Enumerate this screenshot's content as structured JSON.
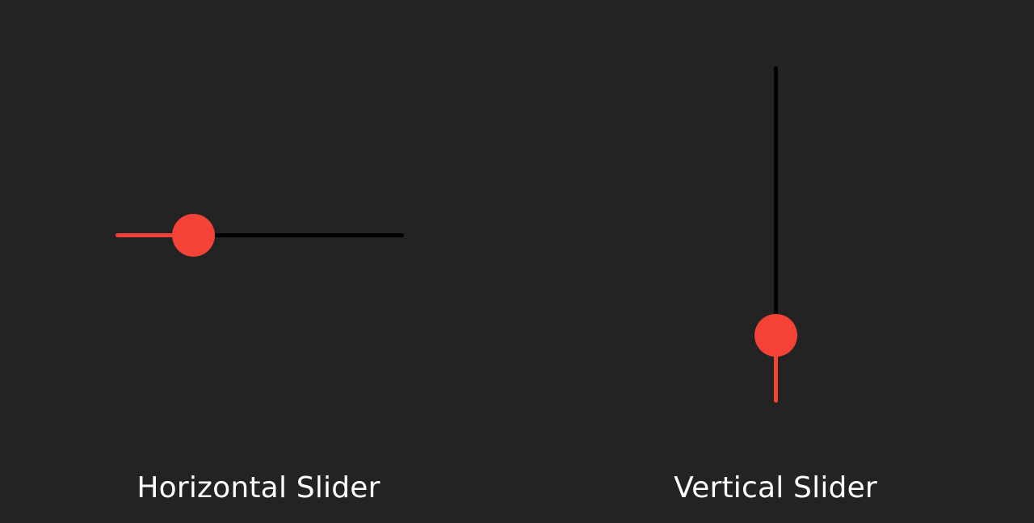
{
  "colors": {
    "background": "#232323",
    "track": "#000000",
    "accent": "#f44336",
    "text": "#ffffff"
  },
  "horizontal_slider": {
    "label": "Horizontal Slider",
    "value": 0.27
  },
  "vertical_slider": {
    "label": "Vertical Slider",
    "value": 0.2
  }
}
